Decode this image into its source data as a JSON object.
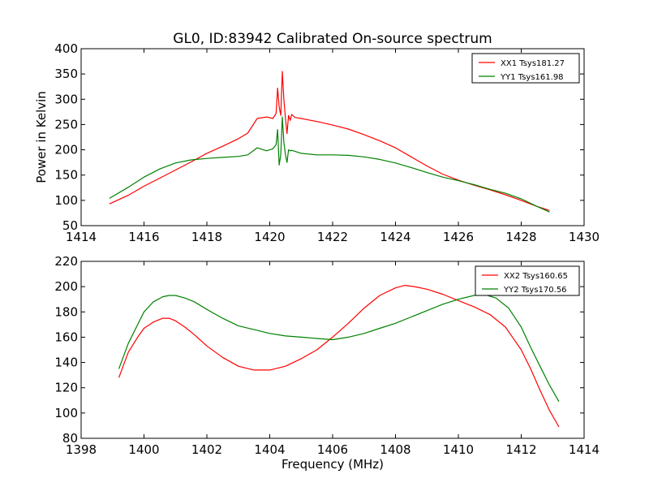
{
  "title": "GL0, ID:83942 Calibrated On-source spectrum",
  "colors": {
    "xx": "#ff0000",
    "yy": "#008000"
  },
  "chart_data": [
    {
      "type": "line",
      "xlim": [
        1414,
        1430
      ],
      "ylim": [
        50,
        400
      ],
      "xticks": [
        1414,
        1416,
        1418,
        1420,
        1422,
        1424,
        1426,
        1428,
        1430
      ],
      "yticks": [
        50,
        100,
        150,
        200,
        250,
        300,
        350,
        400
      ],
      "xlabel": "",
      "ylabel": "Power in Kelvin",
      "legend_position": "top-right",
      "series": [
        {
          "name": "XX1 Tsys181.27",
          "color": "#ff0000",
          "x": [
            1414.9,
            1415.5,
            1416.0,
            1416.5,
            1417.0,
            1417.5,
            1418.0,
            1418.5,
            1419.0,
            1419.3,
            1419.6,
            1419.9,
            1420.1,
            1420.2,
            1420.25,
            1420.3,
            1420.35,
            1420.4,
            1420.45,
            1420.5,
            1420.55,
            1420.6,
            1420.65,
            1420.7,
            1420.8,
            1421.0,
            1421.5,
            1422.0,
            1422.5,
            1423.0,
            1423.5,
            1424.0,
            1424.5,
            1425.0,
            1425.5,
            1426.0,
            1426.5,
            1427.0,
            1427.5,
            1428.0,
            1428.5,
            1428.9
          ],
          "y": [
            93,
            110,
            128,
            144,
            160,
            176,
            193,
            207,
            222,
            233,
            262,
            265,
            262,
            272,
            322,
            285,
            268,
            355,
            300,
            262,
            232,
            268,
            258,
            270,
            264,
            262,
            256,
            249,
            241,
            230,
            218,
            204,
            186,
            168,
            152,
            140,
            130,
            121,
            111,
            100,
            88,
            80
          ]
        },
        {
          "name": "YY1 Tsys161.98",
          "color": "#008000",
          "x": [
            1414.9,
            1415.5,
            1416.0,
            1416.5,
            1417.0,
            1417.5,
            1418.0,
            1418.5,
            1419.0,
            1419.3,
            1419.6,
            1419.9,
            1420.1,
            1420.2,
            1420.25,
            1420.3,
            1420.35,
            1420.4,
            1420.45,
            1420.5,
            1420.55,
            1420.6,
            1420.65,
            1420.7,
            1420.8,
            1421.0,
            1421.5,
            1422.0,
            1422.5,
            1423.0,
            1423.5,
            1424.0,
            1424.5,
            1425.0,
            1425.5,
            1426.0,
            1426.5,
            1427.0,
            1427.5,
            1428.0,
            1428.5,
            1428.9
          ],
          "y": [
            104,
            126,
            146,
            162,
            174,
            180,
            183,
            185,
            187,
            190,
            204,
            198,
            202,
            210,
            240,
            170,
            190,
            265,
            215,
            190,
            175,
            200,
            198,
            199,
            197,
            193,
            190,
            190,
            189,
            186,
            181,
            174,
            165,
            155,
            146,
            139,
            131,
            122,
            114,
            103,
            88,
            77
          ]
        }
      ]
    },
    {
      "type": "line",
      "xlim": [
        1398,
        1414
      ],
      "ylim": [
        80,
        220
      ],
      "xticks": [
        1398,
        1400,
        1402,
        1404,
        1406,
        1408,
        1410,
        1412,
        1414
      ],
      "yticks": [
        80,
        100,
        120,
        140,
        160,
        180,
        200,
        220
      ],
      "xlabel": "Frequency (MHz)",
      "ylabel": "",
      "legend_position": "top-right",
      "series": [
        {
          "name": "XX2 Tsys160.65",
          "color": "#ff0000",
          "x": [
            1399.2,
            1399.5,
            1399.8,
            1400.0,
            1400.3,
            1400.6,
            1400.8,
            1401.0,
            1401.3,
            1401.6,
            1402.0,
            1402.5,
            1403.0,
            1403.5,
            1404.0,
            1404.5,
            1405.0,
            1405.5,
            1406.0,
            1406.5,
            1407.0,
            1407.5,
            1408.0,
            1408.3,
            1408.6,
            1409.0,
            1409.5,
            1410.0,
            1410.5,
            1411.0,
            1411.5,
            1412.0,
            1412.3,
            1412.6,
            1412.9,
            1413.2
          ],
          "y": [
            128,
            148,
            160,
            167,
            172,
            175,
            175,
            173,
            168,
            162,
            153,
            144,
            137,
            134,
            134,
            137,
            143,
            150,
            160,
            171,
            183,
            193,
            199,
            201,
            200,
            198,
            194,
            189,
            184,
            178,
            168,
            150,
            135,
            118,
            102,
            89
          ]
        },
        {
          "name": "YY2 Tsys170.56",
          "color": "#008000",
          "x": [
            1399.2,
            1399.5,
            1399.8,
            1400.0,
            1400.3,
            1400.6,
            1400.8,
            1401.0,
            1401.3,
            1401.6,
            1402.0,
            1402.5,
            1403.0,
            1403.5,
            1404.0,
            1404.5,
            1405.0,
            1405.5,
            1406.0,
            1406.5,
            1407.0,
            1407.5,
            1408.0,
            1408.5,
            1409.0,
            1409.5,
            1410.0,
            1410.5,
            1410.8,
            1411.2,
            1411.6,
            1412.0,
            1412.3,
            1412.6,
            1412.9,
            1413.2
          ],
          "y": [
            135,
            155,
            170,
            180,
            188,
            192,
            193,
            193,
            191,
            188,
            182,
            175,
            169,
            166,
            163,
            161,
            160,
            159,
            158,
            160,
            163,
            167,
            171,
            176,
            181,
            186,
            190,
            193,
            194,
            191,
            183,
            168,
            152,
            137,
            122,
            109
          ]
        }
      ]
    }
  ]
}
